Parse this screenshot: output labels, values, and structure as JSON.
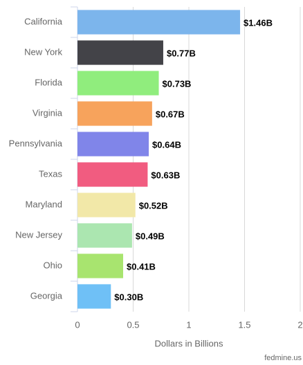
{
  "chart_data": {
    "type": "bar",
    "orientation": "horizontal",
    "categories": [
      "California",
      "New York",
      "Florida",
      "Virginia",
      "Pennsylvania",
      "Texas",
      "Maryland",
      "New Jersey",
      "Ohio",
      "Georgia"
    ],
    "values": [
      1.46,
      0.77,
      0.73,
      0.67,
      0.64,
      0.63,
      0.52,
      0.49,
      0.41,
      0.3
    ],
    "value_labels": [
      "$1.46B",
      "$0.77B",
      "$0.73B",
      "$0.67B",
      "$0.64B",
      "$0.63B",
      "$0.52B",
      "$0.49B",
      "$0.41B",
      "$0.30B"
    ],
    "colors": [
      "#7cb5ec",
      "#434348",
      "#90ed7d",
      "#f7a35c",
      "#8085e9",
      "#f15c80",
      "#f2e8a8",
      "#abe6b0",
      "#a8e46f",
      "#6fc0f6"
    ],
    "xlim": [
      0,
      2
    ],
    "xticks": [
      0,
      0.5,
      1,
      1.5,
      2
    ],
    "grid": true,
    "xlabel": "Dollars in Billions",
    "credit": "fedmine.us"
  }
}
